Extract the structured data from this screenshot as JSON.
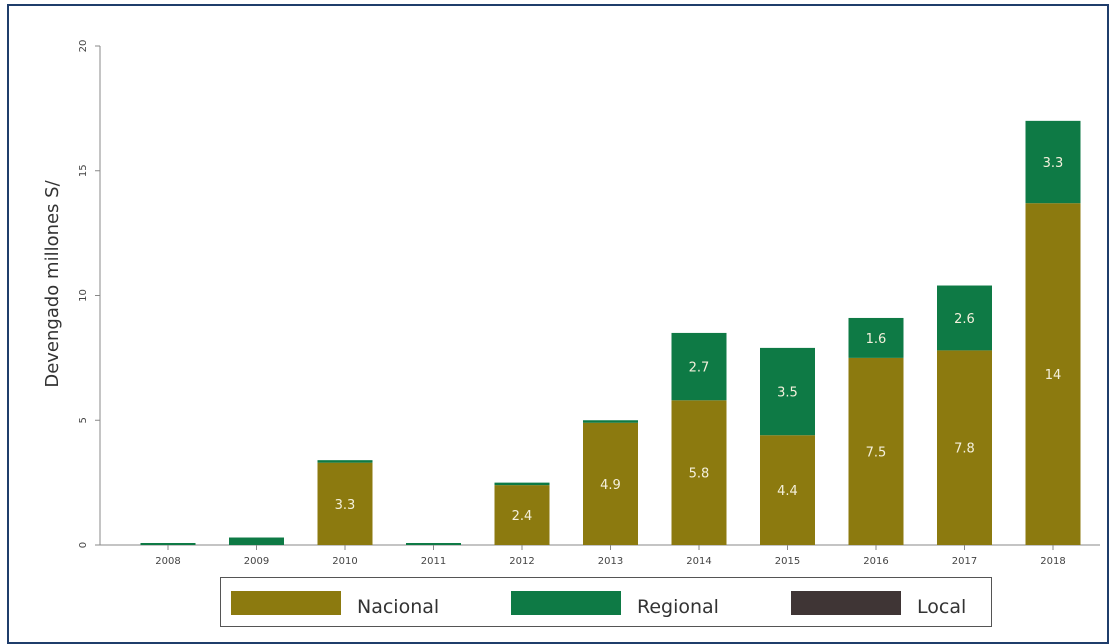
{
  "chart_data": {
    "type": "bar",
    "stacked": true,
    "ylabel": "Devengado millones S/",
    "xlabel": "",
    "ylim": [
      0,
      20
    ],
    "yticks": [
      0,
      5,
      10,
      15,
      20
    ],
    "categories": [
      "2008",
      "2009",
      "2010",
      "2011",
      "2012",
      "2013",
      "2014",
      "2015",
      "2016",
      "2017",
      "2018"
    ],
    "series": [
      {
        "name": "Nacional",
        "color": "#8c7a0f",
        "values": [
          0,
          0,
          3.3,
          0,
          2.4,
          4.9,
          5.8,
          4.4,
          7.5,
          7.8,
          13.7
        ],
        "labels": [
          "",
          "",
          "3.3",
          "",
          "2.4",
          "4.9",
          "5.8",
          "4.4",
          "7.5",
          "7.8",
          "14"
        ]
      },
      {
        "name": "Regional",
        "color": "#0e7a45",
        "values": [
          0.08,
          0.3,
          0.1,
          0.06,
          0.1,
          0.1,
          2.7,
          3.5,
          1.6,
          2.6,
          3.3
        ],
        "labels": [
          "",
          "",
          "",
          "",
          "",
          "",
          "2.7",
          "3.5",
          "1.6",
          "2.6",
          "3.3"
        ]
      },
      {
        "name": "Local",
        "color": "#3f3535",
        "values": [
          0,
          0,
          0,
          0,
          0,
          0,
          0,
          0,
          0,
          0,
          0
        ],
        "labels": [
          "",
          "",
          "",
          "",
          "",
          "",
          "",
          "",
          "",
          "",
          ""
        ]
      }
    ],
    "grid": false,
    "legend_position": "bottom"
  },
  "legend": {
    "items": [
      {
        "label": "Nacional",
        "color": "#8c7a0f"
      },
      {
        "label": "Regional",
        "color": "#0e7a45"
      },
      {
        "label": "Local",
        "color": "#3f3535"
      }
    ]
  }
}
